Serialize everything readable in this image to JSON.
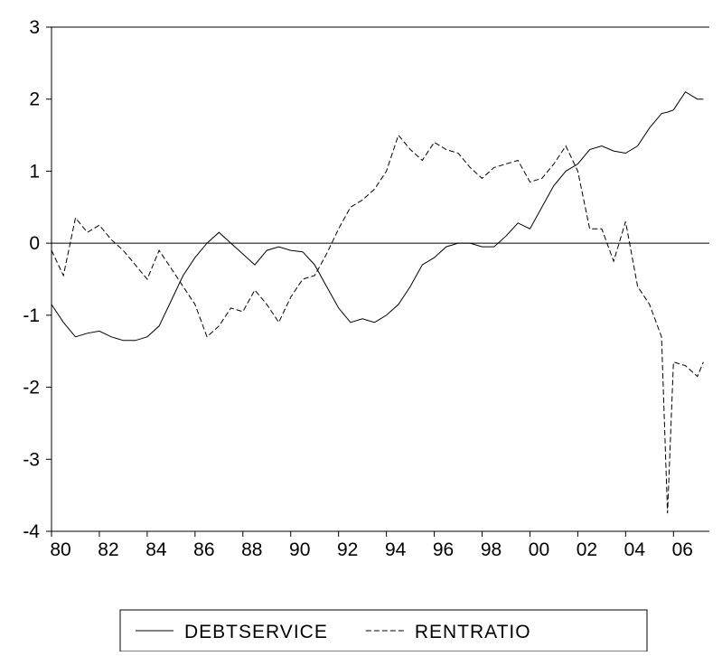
{
  "chart_data": {
    "type": "line",
    "x": [
      80,
      80.5,
      81,
      81.5,
      82,
      82.5,
      83,
      83.5,
      84,
      84.5,
      85,
      85.5,
      86,
      86.5,
      87,
      87.5,
      88,
      88.5,
      89,
      89.5,
      90,
      90.5,
      91,
      91.5,
      92,
      92.5,
      93,
      93.5,
      94,
      94.5,
      95,
      95.5,
      96,
      96.5,
      97,
      97.5,
      98,
      98.5,
      99,
      99.5,
      100,
      100.5,
      101,
      101.5,
      102,
      102.5,
      103,
      103.5,
      104,
      104.5,
      105,
      105.5,
      105.75,
      106,
      106.5,
      107,
      107.25
    ],
    "series": [
      {
        "name": "DEBTSERVICE",
        "color": "#000000",
        "dash": "solid",
        "values": [
          -0.85,
          -1.1,
          -1.3,
          -1.25,
          -1.22,
          -1.3,
          -1.35,
          -1.35,
          -1.3,
          -1.15,
          -0.8,
          -0.45,
          -0.2,
          0.0,
          0.15,
          0.0,
          -0.15,
          -0.3,
          -0.1,
          -0.05,
          -0.1,
          -0.12,
          -0.3,
          -0.6,
          -0.9,
          -1.1,
          -1.05,
          -1.1,
          -1.0,
          -0.85,
          -0.6,
          -0.3,
          -0.2,
          -0.05,
          0.0,
          0.0,
          -0.05,
          -0.05,
          0.1,
          0.28,
          0.2,
          0.5,
          0.8,
          1.0,
          1.1,
          1.3,
          1.35,
          1.28,
          1.25,
          1.35,
          1.6,
          1.8,
          1.82,
          1.85,
          2.1,
          2.0,
          2.0
        ]
      },
      {
        "name": "RENTRATIO",
        "color": "#000000",
        "dash": "dashed",
        "values": [
          -0.1,
          -0.45,
          0.35,
          0.15,
          0.25,
          0.05,
          -0.1,
          -0.3,
          -0.5,
          -0.1,
          -0.35,
          -0.6,
          -0.85,
          -1.3,
          -1.15,
          -0.9,
          -0.95,
          -0.65,
          -0.85,
          -1.1,
          -0.75,
          -0.5,
          -0.45,
          -0.15,
          0.2,
          0.5,
          0.6,
          0.75,
          1.0,
          1.5,
          1.3,
          1.15,
          1.4,
          1.3,
          1.25,
          1.05,
          0.9,
          1.05,
          1.1,
          1.15,
          0.85,
          0.9,
          1.1,
          1.35,
          1.0,
          0.2,
          0.2,
          -0.25,
          0.3,
          -0.6,
          -0.85,
          -1.3,
          -3.75,
          -1.65,
          -1.7,
          -1.85,
          -1.65
        ]
      }
    ],
    "xlim": [
      80,
      107.5
    ],
    "xticks": [
      80,
      82,
      84,
      86,
      88,
      90,
      92,
      94,
      96,
      98,
      {
        "value": 100,
        "label": "00"
      },
      {
        "value": 102,
        "label": "02"
      },
      {
        "value": 104,
        "label": "04"
      },
      {
        "value": 106,
        "label": "06"
      }
    ],
    "ylim": [
      -4,
      3
    ],
    "yticks": [
      -4,
      -3,
      -2,
      -1,
      0,
      1,
      2,
      3
    ],
    "zero_line": true,
    "legend": "bottom"
  }
}
